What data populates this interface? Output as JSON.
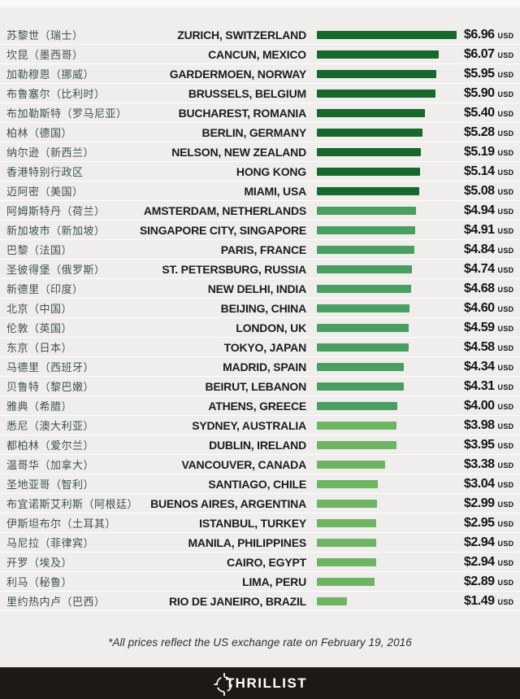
{
  "page": {
    "background": "#efeeec",
    "separator_color": "rgba(255,255,255,0.85)"
  },
  "chart_data": {
    "type": "bar",
    "orientation": "horizontal",
    "title": "",
    "xlabel": "",
    "ylabel": "",
    "unit": "USD",
    "currency_symbol": "$",
    "value_range": [
      0,
      6.96
    ],
    "grid": false,
    "legend": false,
    "bar_color_tiers": [
      {
        "min_value": 5.0,
        "color": "#16682c",
        "label": "dark-green"
      },
      {
        "min_value": 4.0,
        "color": "#4b9e62",
        "label": "medium-green"
      },
      {
        "min_value": 0.0,
        "color": "#6fb464",
        "label": "light-green"
      }
    ],
    "rows": [
      {
        "city_zh": "苏黎世（瑞士）",
        "city_en": "ZURICH, SWITZERLAND",
        "price": 6.96
      },
      {
        "city_zh": "坎昆（墨西哥）",
        "city_en": "CANCUN, MEXICO",
        "price": 6.07
      },
      {
        "city_zh": "加勒穆恩（挪威）",
        "city_en": "GARDERMOEN, NORWAY",
        "price": 5.95
      },
      {
        "city_zh": "布鲁塞尔（比利时）",
        "city_en": "BRUSSELS, BELGIUM",
        "price": 5.9
      },
      {
        "city_zh": "布加勒斯特（罗马尼亚）",
        "city_en": "BUCHAREST, ROMANIA",
        "price": 5.4
      },
      {
        "city_zh": "柏林（德国）",
        "city_en": "BERLIN, GERMANY",
        "price": 5.28
      },
      {
        "city_zh": "纳尔逊（新西兰）",
        "city_en": "NELSON, NEW ZEALAND",
        "price": 5.19
      },
      {
        "city_zh": "香港特别行政区",
        "city_en": "HONG KONG",
        "price": 5.14
      },
      {
        "city_zh": "迈阿密（美国）",
        "city_en": "MIAMI, USA",
        "price": 5.08
      },
      {
        "city_zh": "阿姆斯特丹（荷兰）",
        "city_en": "AMSTERDAM, NETHERLANDS",
        "price": 4.94
      },
      {
        "city_zh": "新加坡市（新加坡）",
        "city_en": "SINGAPORE CITY, SINGAPORE",
        "price": 4.91
      },
      {
        "city_zh": "巴黎（法国）",
        "city_en": "PARIS, FRANCE",
        "price": 4.84
      },
      {
        "city_zh": "圣彼得堡（俄罗斯）",
        "city_en": "ST. PETERSBURG, RUSSIA",
        "price": 4.74
      },
      {
        "city_zh": "新德里（印度）",
        "city_en": "NEW DELHI, INDIA",
        "price": 4.68
      },
      {
        "city_zh": "北京（中国）",
        "city_en": "BEIJING, CHINA",
        "price": 4.6
      },
      {
        "city_zh": "伦敦（英国）",
        "city_en": "LONDON, UK",
        "price": 4.59
      },
      {
        "city_zh": "东京（日本）",
        "city_en": "TOKYO, JAPAN",
        "price": 4.58
      },
      {
        "city_zh": "马德里（西班牙）",
        "city_en": "MADRID, SPAIN",
        "price": 4.34
      },
      {
        "city_zh": "贝鲁特（黎巴嫩）",
        "city_en": "BEIRUT, LEBANON",
        "price": 4.31
      },
      {
        "city_zh": "雅典（希腊）",
        "city_en": "ATHENS, GREECE",
        "price": 4.0
      },
      {
        "city_zh": "悉尼（澳大利亚）",
        "city_en": "SYDNEY, AUSTRALIA",
        "price": 3.98
      },
      {
        "city_zh": "都柏林（爱尔兰）",
        "city_en": "DUBLIN, IRELAND",
        "price": 3.95
      },
      {
        "city_zh": "温哥华（加拿大）",
        "city_en": "VANCOUVER, CANADA",
        "price": 3.38
      },
      {
        "city_zh": "圣地亚哥（智利）",
        "city_en": "SANTIAGO, CHILE",
        "price": 3.04
      },
      {
        "city_zh": "布宜诺斯艾利斯（阿根廷）",
        "city_en": "BUENOS AIRES, ARGENTINA",
        "price": 2.99
      },
      {
        "city_zh": "伊斯坦布尔（土耳其）",
        "city_en": "ISTANBUL, TURKEY",
        "price": 2.95
      },
      {
        "city_zh": "马尼拉（菲律宾）",
        "city_en": "MANILA, PHILIPPINES",
        "price": 2.94
      },
      {
        "city_zh": "开罗（埃及）",
        "city_en": "CAIRO, EGYPT",
        "price": 2.94
      },
      {
        "city_zh": "利马（秘鲁）",
        "city_en": "LIMA, PERU",
        "price": 2.89
      },
      {
        "city_zh": "里约热内卢（巴西）",
        "city_en": "RIO DE JANEIRO, BRAZIL",
        "price": 1.49
      }
    ]
  },
  "footnote": "*All prices reflect the US exchange rate on February 19, 2016",
  "footer": {
    "brand": "THRILLIST",
    "background": "#1d1a16"
  }
}
